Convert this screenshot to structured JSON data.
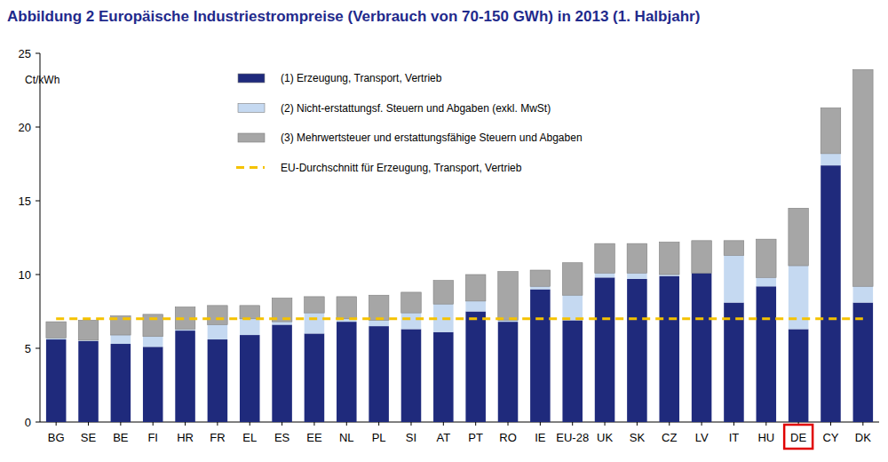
{
  "chart_data": {
    "type": "bar",
    "title": "Abbildung 2  Europäische Industriestrompreise (Verbrauch von 70-150 GWh) in 2013 (1. Halbjahr)",
    "y_label": "Ct/kWh",
    "stacked": true,
    "grid": false,
    "legend": "top",
    "categories": [
      "BG",
      "SE",
      "BE",
      "FI",
      "HR",
      "FR",
      "EL",
      "ES",
      "EE",
      "NL",
      "PL",
      "SI",
      "AT",
      "PT",
      "RO",
      "IE",
      "EU-28",
      "UK",
      "SK",
      "CZ",
      "LV",
      "IT",
      "HU",
      "DE",
      "CY",
      "DK"
    ],
    "ylim": [
      0,
      25
    ],
    "yticks": [
      0,
      5,
      10,
      15,
      20,
      25
    ],
    "series": [
      {
        "name": "(1) Erzeugung, Transport, Vertrieb",
        "color": "#1f2a7c",
        "values": [
          5.6,
          5.5,
          5.3,
          5.1,
          6.2,
          5.6,
          5.9,
          6.6,
          6.0,
          6.8,
          6.5,
          6.3,
          6.1,
          7.5,
          6.8,
          9.0,
          6.9,
          9.8,
          9.7,
          9.9,
          10.1,
          8.1,
          9.2,
          6.3,
          17.4,
          8.1
        ]
      },
      {
        "name": "(2) Nicht-erstattungsf. Steuern und Abgaben (exkl. MwSt)",
        "color": "#c5d9f1",
        "values": [
          0.1,
          0.05,
          0.6,
          0.7,
          0.1,
          1.0,
          1.1,
          0.2,
          1.4,
          0.2,
          0.4,
          1.1,
          1.9,
          0.7,
          0.1,
          0.2,
          1.7,
          0.3,
          0.4,
          0.1,
          0.0,
          3.2,
          0.6,
          4.3,
          0.8,
          1.1
        ]
      },
      {
        "name": "(3) Mehrwertsteuer und erstattungsfähige Steuern und Abgaben",
        "color": "#a6a6a6",
        "values": [
          1.1,
          1.35,
          1.3,
          1.5,
          1.5,
          1.3,
          0.9,
          1.6,
          1.1,
          1.5,
          1.7,
          1.4,
          1.6,
          1.8,
          3.3,
          1.1,
          2.2,
          2.0,
          2.0,
          2.2,
          2.2,
          1.0,
          2.6,
          3.9,
          3.1,
          14.7
        ]
      },
      {
        "name": "EU-Durchschnitt für Erzeugung, Transport, Vertrieb",
        "color": "#f5c200",
        "type": "line",
        "line_style": "dashed",
        "values": [
          7.0,
          7.0,
          7.0,
          7.0,
          7.0,
          7.0,
          7.0,
          7.0,
          7.0,
          7.0,
          7.0,
          7.0,
          7.0,
          7.0,
          7.0,
          7.0,
          7.0,
          7.0,
          7.0,
          7.0,
          7.0,
          7.0,
          7.0,
          7.0,
          7.0,
          7.0
        ]
      }
    ]
  }
}
